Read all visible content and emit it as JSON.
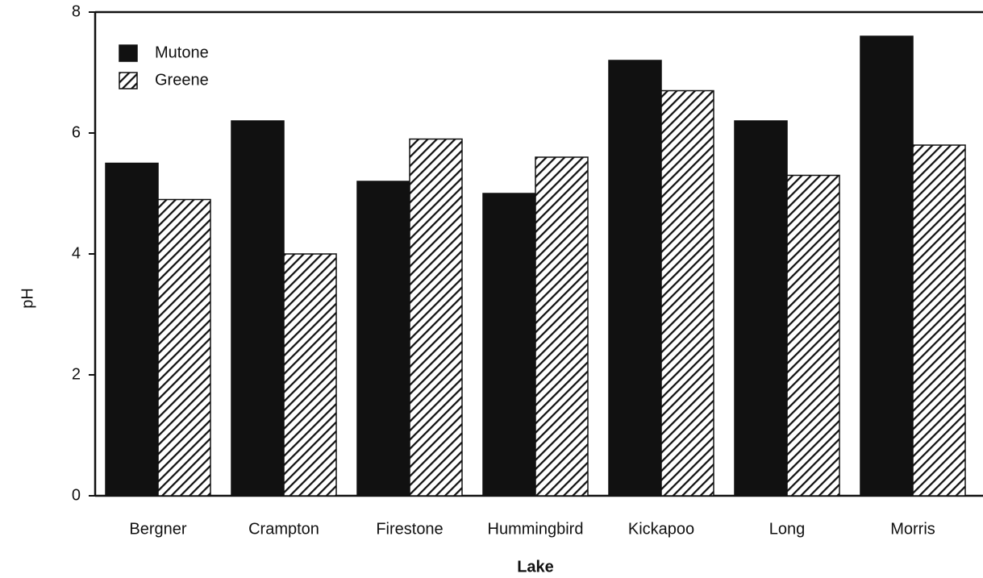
{
  "chart_data": {
    "type": "bar",
    "x_label": "Lake",
    "y_label": "pH",
    "categories": [
      "Bergner",
      "Crampton",
      "Firestone",
      "Hummingbird",
      "Kickapoo",
      "Long",
      "Morris"
    ],
    "series": [
      {
        "name": "Mutone",
        "color": "#111111",
        "hatch": false,
        "values": [
          5.5,
          6.2,
          5.2,
          5.0,
          7.2,
          6.2,
          7.6
        ]
      },
      {
        "name": "Greene",
        "color": "#111111",
        "hatch": true,
        "values": [
          4.9,
          4.0,
          5.9,
          5.6,
          6.7,
          5.3,
          5.8
        ]
      }
    ],
    "ylim": [
      0,
      8
    ],
    "yticks": [
      0,
      2,
      4,
      6,
      8
    ],
    "legend": "upper left",
    "grid": false
  }
}
